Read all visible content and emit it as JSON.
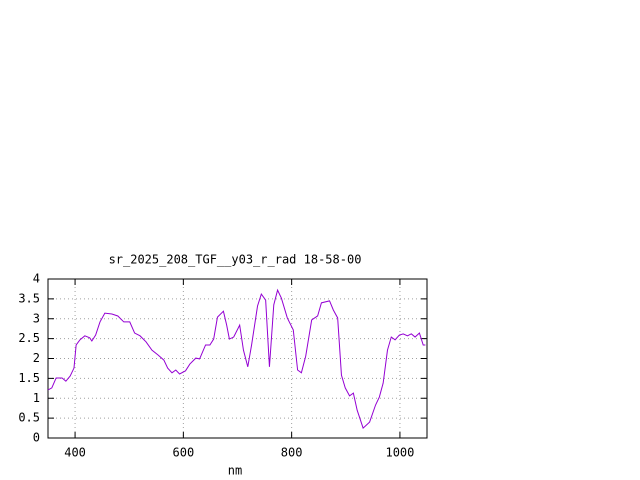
{
  "chart_data": {
    "type": "line",
    "title": "sr_2025_208_TGF__y03_r_rad 18-58-00",
    "x_label": "nm",
    "x": [
      350,
      357,
      365,
      376,
      383,
      391,
      398,
      402,
      409,
      418,
      427,
      431,
      438,
      446,
      455,
      468,
      479,
      490,
      501,
      510,
      520,
      531,
      542,
      553,
      564,
      571,
      579,
      586,
      593,
      604,
      612,
      623,
      630,
      641,
      649,
      656,
      663,
      674,
      680,
      685,
      693,
      704,
      711,
      719,
      726,
      737,
      744,
      752,
      759,
      767,
      774,
      781,
      792,
      803,
      811,
      818,
      826,
      837,
      848,
      855,
      870,
      877,
      885,
      892,
      899,
      907,
      914,
      921,
      932,
      944,
      955,
      962,
      969,
      977,
      984,
      991,
      999,
      1006,
      1014,
      1021,
      1028,
      1036,
      1043,
      1047
    ],
    "series": [
      {
        "color": "#9400d3",
        "values": [
          1.21,
          1.26,
          1.51,
          1.51,
          1.43,
          1.56,
          1.76,
          2.34,
          2.47,
          2.57,
          2.52,
          2.44,
          2.59,
          2.92,
          3.14,
          3.12,
          3.07,
          2.92,
          2.92,
          2.64,
          2.57,
          2.42,
          2.21,
          2.09,
          1.96,
          1.76,
          1.64,
          1.71,
          1.61,
          1.69,
          1.86,
          2.01,
          1.99,
          2.34,
          2.34,
          2.49,
          3.04,
          3.19,
          2.84,
          2.49,
          2.54,
          2.84,
          2.21,
          1.79,
          2.34,
          3.32,
          3.62,
          3.47,
          1.79,
          3.35,
          3.72,
          3.52,
          3.02,
          2.72,
          1.71,
          1.64,
          2.06,
          2.97,
          3.07,
          3.4,
          3.45,
          3.22,
          3.02,
          1.58,
          1.26,
          1.06,
          1.13,
          0.7,
          0.25,
          0.4,
          0.83,
          1.03,
          1.38,
          2.21,
          2.54,
          2.47,
          2.59,
          2.62,
          2.57,
          2.62,
          2.54,
          2.64,
          2.34,
          2.34
        ]
      }
    ],
    "xlim": [
      350,
      1050
    ],
    "xticks": [
      400,
      600,
      800,
      1000
    ],
    "ylim": [
      0,
      4
    ],
    "yticks": [
      0,
      0.5,
      1,
      1.5,
      2,
      2.5,
      3,
      3.5,
      4
    ],
    "grid": true
  }
}
